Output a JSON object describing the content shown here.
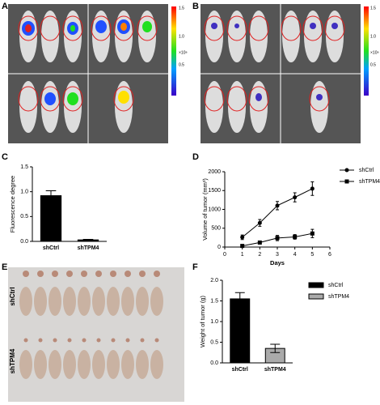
{
  "panels": [
    "A",
    "B",
    "C",
    "D",
    "E",
    "F"
  ],
  "imaging": [
    {
      "colorbar_labels": [
        "1.5",
        "1.0",
        "0.5",
        "×10⁸"
      ]
    },
    {
      "colorbar_labels": [
        "1.5",
        "1.0",
        "0.5",
        "×10⁸"
      ]
    }
  ],
  "photo_labels": [
    "shCtrl",
    "shTPM4"
  ],
  "chart_data": [
    {
      "type": "bar",
      "categories": [
        "shCtrl",
        "shTPM4"
      ],
      "values": [
        0.92,
        0.03
      ],
      "errors": [
        0.1,
        0.01
      ],
      "color": "#000000",
      "ylabel": "Fluorescence degree",
      "ylim": [
        0,
        1.5
      ],
      "yticks": [
        {
          "value": 0,
          "label": "0.0"
        },
        0.5,
        {
          "value": 1,
          "label": "1.0"
        },
        1.5
      ]
    },
    {
      "type": "line",
      "x": [
        1,
        2,
        3,
        4,
        5
      ],
      "xlabel": "Days",
      "ylabel": "Volume of tumor (mm³)",
      "xlim": [
        0,
        6
      ],
      "xticks": [
        0,
        1,
        2,
        3,
        4,
        5,
        6
      ],
      "ylim": [
        0,
        2000
      ],
      "yticks": [
        0,
        500,
        1000,
        1500,
        2000
      ],
      "series": [
        {
          "name": "shCtrl",
          "color": "#000000",
          "marker": "circle",
          "values": [
            260,
            640,
            1100,
            1320,
            1550
          ],
          "errors": [
            60,
            90,
            110,
            120,
            180
          ]
        },
        {
          "name": "shTPM4",
          "color": "#000000",
          "marker": "square",
          "values": [
            30,
            120,
            240,
            270,
            360
          ],
          "errors": [
            20,
            40,
            70,
            60,
            110
          ]
        }
      ]
    },
    {
      "type": "bar",
      "categories": [
        "shCtrl",
        "shTPM4"
      ],
      "ylabel": "Weight of tumor (g)",
      "ylim": [
        0,
        2
      ],
      "yticks": [
        {
          "value": 0,
          "label": "0.0"
        },
        0.5,
        {
          "value": 1,
          "label": "1.0"
        },
        1.5,
        {
          "value": 2,
          "label": "2.0"
        }
      ],
      "series": [
        {
          "name": "shCtrl",
          "color": "#000000",
          "values": [
            1.55,
            null
          ],
          "errors": [
            0.15,
            null
          ]
        },
        {
          "name": "shTPM4",
          "color": "#aaaaaa",
          "values": [
            null,
            0.35
          ],
          "errors": [
            null,
            0.1
          ]
        }
      ]
    }
  ]
}
